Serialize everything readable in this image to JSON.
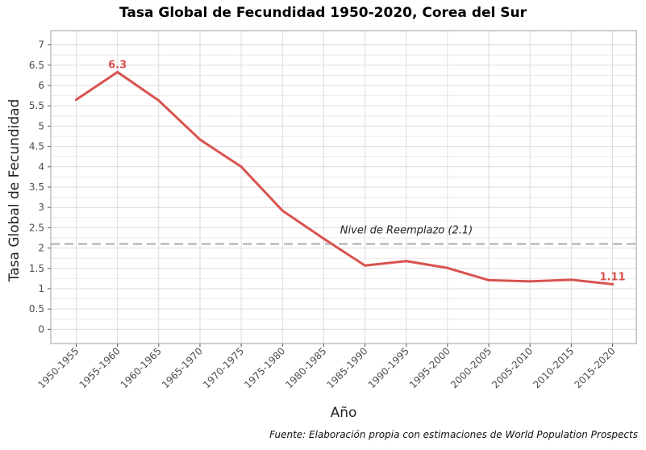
{
  "chart_data": {
    "type": "line",
    "title": "Tasa Global de Fecundidad 1950-2020, Corea del Sur",
    "xlabel": "Año",
    "ylabel": "Tasa Global de Fecundidad",
    "categories": [
      "1950-1955",
      "1955-1960",
      "1960-1965",
      "1965-1970",
      "1970-1975",
      "1975-1980",
      "1980-1985",
      "1985-1990",
      "1990-1995",
      "1995-2000",
      "2000-2005",
      "2005-2010",
      "2010-2015",
      "2015-2020"
    ],
    "series": [
      {
        "values": [
          5.65,
          6.33,
          5.63,
          4.67,
          4.0,
          2.92,
          2.23,
          1.57,
          1.68,
          1.51,
          1.21,
          1.18,
          1.22,
          1.11
        ]
      }
    ],
    "ylim": [
      -0.35,
      7.35
    ],
    "yticks": [
      "0",
      "0.5",
      "1",
      "1.5",
      "2",
      "2.5",
      "3",
      "3.5",
      "4",
      "4.5",
      "5",
      "5.5",
      "6",
      "6.5",
      "7"
    ],
    "reference_line": {
      "value": 2.1,
      "label": "Nivel de Reemplazo (2.1)"
    },
    "data_labels": [
      {
        "index": 1,
        "text": "6.3"
      },
      {
        "index": 13,
        "text": "1.11"
      }
    ],
    "grid": true,
    "colors": {
      "line": "#d9534f",
      "reference": "#bbbbbb",
      "grid": "#dcdcdc",
      "border": "#a0a0a0"
    }
  },
  "caption": "Fuente: Elaboración propia con estimaciones de World Population Prospects"
}
